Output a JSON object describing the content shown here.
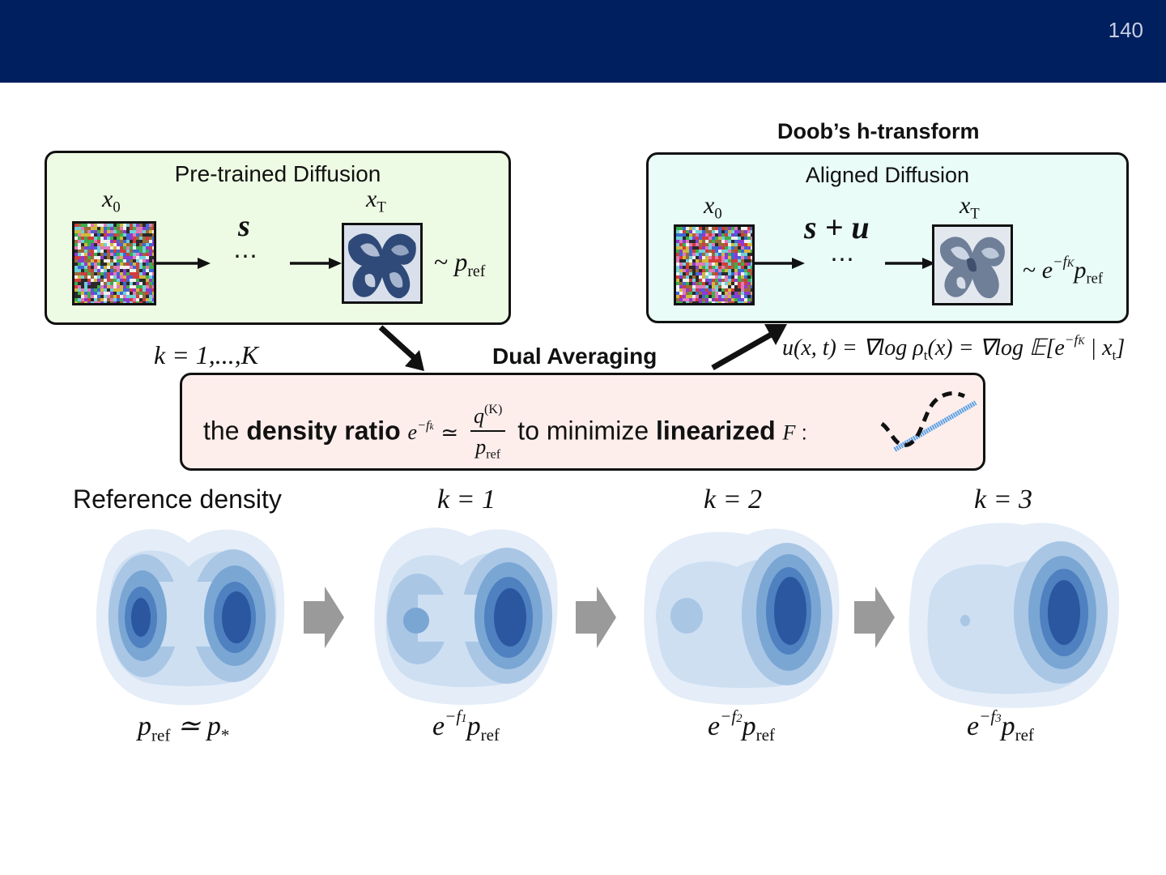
{
  "slide": {
    "page_number": "140",
    "header_color": "#001f5f"
  },
  "pretrained": {
    "title": "Pre-trained Diffusion",
    "x0": "x",
    "x0_sub": "0",
    "xT": "x",
    "xT_sub": "T",
    "score": "s",
    "ellipsis": "⋯",
    "dist_tilde": "~",
    "dist_p": "p",
    "dist_sub": "ref"
  },
  "aligned": {
    "heading": "Doob’s h-transform",
    "title": "Aligned Diffusion",
    "x0": "x",
    "x0_sub": "0",
    "xT": "x",
    "xT_sub": "T",
    "score": "s + u",
    "ellipsis": "⋯",
    "dist_tilde": "~",
    "dist_e": "e",
    "dist_exp": "−f",
    "dist_exp_sub": "K",
    "dist_p": "p",
    "dist_sub": "ref"
  },
  "iteration_label": "k = 1,...,K",
  "dual_averaging": {
    "heading": "Dual Averaging",
    "text_the": "the ",
    "text_density_ratio": "density ratio",
    "ratio_e": "e",
    "ratio_exp": "−f",
    "ratio_exp_sub": "k",
    "approx": "≃",
    "frac_num": "q",
    "frac_num_sup": "(K)",
    "frac_den": "p",
    "frac_den_sub": "ref",
    "text_to_minimize": " to minimize ",
    "text_linearized": "linearized",
    "text_F": "F",
    "text_colon": " :"
  },
  "control_formula": "u(x, t) = ∇log ρ",
  "control_formula_sub": "t",
  "control_formula_mid": "(x) = ∇log 𝔼[e",
  "control_formula_exp": "−f",
  "control_formula_exp_sub": "K",
  "control_formula_end": " | x",
  "control_formula_end_sub": "t",
  "control_formula_close": "]",
  "densities": [
    {
      "heading": "Reference density",
      "caption_a": "p",
      "caption_a_sub": "ref",
      "caption_b": " ≃ p",
      "caption_b_sub": "*"
    },
    {
      "heading": "k = 1",
      "caption_e": "e",
      "caption_exp": "−f",
      "caption_exp_sub": "1",
      "caption_p": "p",
      "caption_p_sub": "ref"
    },
    {
      "heading": "k = 2",
      "caption_e": "e",
      "caption_exp": "−f",
      "caption_exp_sub": "2",
      "caption_p": "p",
      "caption_p_sub": "ref"
    },
    {
      "heading": "k = 3",
      "caption_e": "e",
      "caption_exp": "−f",
      "caption_exp_sub": "3",
      "caption_p": "p",
      "caption_p_sub": "ref"
    }
  ],
  "colors": {
    "pretrained_bg": "#eefbe4",
    "aligned_bg": "#e9fcf7",
    "dual_bg": "#fdeeec",
    "density_levels": [
      "#e4edf8",
      "#cddff1",
      "#a9c6e5",
      "#7aa6d4",
      "#4f80c0",
      "#2b56a0"
    ],
    "step_arrow": "#9a9a9a",
    "linear_line": "#5aa0e6"
  }
}
